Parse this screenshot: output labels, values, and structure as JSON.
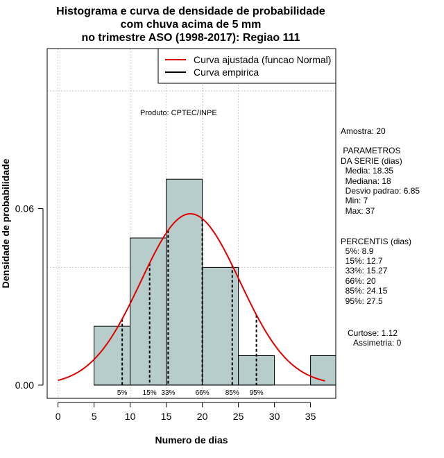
{
  "chart_data": {
    "type": "histogram",
    "title_lines": [
      "Histograma e curva de densidade de probabilidade",
      "com chuva acima de 5 mm",
      "no trimestre ASO (1998-2017): Regiao 111"
    ],
    "xlabel": "Numero de dias",
    "ylabel": "Densidade de probabilidade",
    "xlim": [
      -1.5,
      38.5
    ],
    "ylim": [
      -0.0045,
      0.1144
    ],
    "x_ticks": [
      0,
      5,
      10,
      15,
      20,
      25,
      30,
      35
    ],
    "y_ticks": [
      {
        "value": 0.0,
        "label": "0.00"
      },
      {
        "value": 0.06,
        "label": "0.06"
      }
    ],
    "grid_x": [
      0,
      10,
      15,
      20,
      25
    ],
    "grid_y": [
      0.04,
      0.1
    ],
    "bins": [
      {
        "start": 5,
        "end": 10,
        "density": 0.02
      },
      {
        "start": 10,
        "end": 15,
        "density": 0.05
      },
      {
        "start": 15,
        "end": 20,
        "density": 0.07
      },
      {
        "start": 20,
        "end": 25,
        "density": 0.04
      },
      {
        "start": 25,
        "end": 30,
        "density": 0.01
      },
      {
        "start": 30,
        "end": 35,
        "density": 0.0
      },
      {
        "start": 35,
        "end": 40,
        "density": 0.01
      }
    ],
    "bar_color": "#b7cdcc",
    "normal_curve": {
      "name": "Curva ajustada (funcao Normal)",
      "mean": 18.35,
      "sd": 6.85,
      "x_from": 0,
      "x_to": 37,
      "color": "#e00000"
    },
    "empirical_curve": {
      "name": "Curva empirica",
      "color": "#000000"
    },
    "legend_position": "top-right",
    "percentile_lines": [
      {
        "label": "5%",
        "value": 8.9
      },
      {
        "label": "15%",
        "value": 12.7
      },
      {
        "label": "33%",
        "value": 15.27
      },
      {
        "label": "66%",
        "value": 20
      },
      {
        "label": "85%",
        "value": 24.15
      },
      {
        "label": "95%",
        "value": 27.5
      }
    ],
    "annotation": "Produto: CPTEC/INPE"
  },
  "stats": {
    "amostra": "Amostra: 20",
    "parametros_title": " PARAMETROS",
    "parametros_subtitle": "DA SERIE (dias)",
    "parametros": [
      "  Media: 18.35",
      "  Mediana: 18",
      "  Desvio padrao: 6.85",
      "  Min: 7",
      "  Max: 37"
    ],
    "percentis_title": "PERCENTIS (dias)",
    "percentis": [
      "  5%: 8.9",
      "  15%: 12.7",
      "  33%: 15.27",
      "  66%: 20",
      "  85%: 24.15",
      "  95%: 27.5"
    ],
    "curtose": "Curtose: 1.12",
    "assimetria": "Assimetria: 0"
  }
}
